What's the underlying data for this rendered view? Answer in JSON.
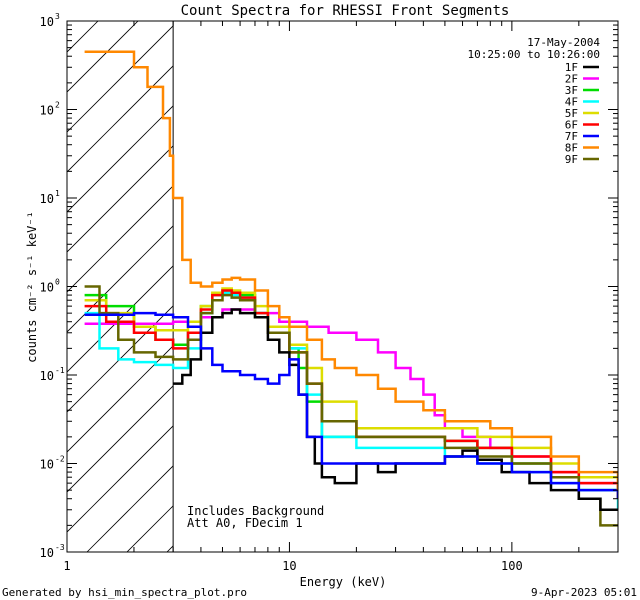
{
  "chart_data": {
    "type": "line",
    "title": "Count Spectra for RHESSI Front Segments",
    "xlabel": "Energy (keV)",
    "ylabel": "counts cm⁻² s⁻¹ keV⁻¹",
    "xscale": "log",
    "yscale": "log",
    "xlim": [
      1,
      300
    ],
    "ylim": [
      0.001,
      1000
    ],
    "x_tick_labels": [
      {
        "value": 1,
        "label": "1"
      },
      {
        "value": 10,
        "label": "10"
      },
      {
        "value": 100,
        "label": "100"
      }
    ],
    "y_tick_labels": [
      {
        "value": 0.001,
        "base": "10",
        "exp": "-3"
      },
      {
        "value": 0.01,
        "base": "10",
        "exp": "-2"
      },
      {
        "value": 0.1,
        "base": "10",
        "exp": "-1"
      },
      {
        "value": 1,
        "base": "10",
        "exp": "0"
      },
      {
        "value": 10,
        "base": "10",
        "exp": "1"
      },
      {
        "value": 100,
        "base": "10",
        "exp": "2"
      },
      {
        "value": 1000,
        "base": "10",
        "exp": "3"
      }
    ],
    "hatched_region": {
      "from": 1,
      "to": 3
    },
    "date": "17-May-2004",
    "time_range": "10:25:00 to 10:26:00",
    "annotation_lines": [
      "Includes Background",
      "Att A0, FDecim 1"
    ],
    "footer_left": "Generated by hsi_min_spectra_plot.pro",
    "footer_right": "9-Apr-2023 05:01",
    "series": [
      {
        "name": "1F",
        "color": "#000000",
        "points": [
          [
            3.0,
            0.08
          ],
          [
            3.3,
            0.1
          ],
          [
            3.6,
            0.15
          ],
          [
            4.0,
            0.3
          ],
          [
            4.5,
            0.45
          ],
          [
            5.0,
            0.5
          ],
          [
            5.5,
            0.55
          ],
          [
            6.0,
            0.5
          ],
          [
            7.0,
            0.45
          ],
          [
            8.0,
            0.25
          ],
          [
            9.0,
            0.18
          ],
          [
            10.0,
            0.13
          ],
          [
            11.0,
            0.06
          ],
          [
            12.0,
            0.02
          ],
          [
            13.0,
            0.01
          ],
          [
            14.0,
            0.007
          ],
          [
            16.0,
            0.006
          ],
          [
            20.0,
            0.01
          ],
          [
            25.0,
            0.008
          ],
          [
            30.0,
            0.01
          ],
          [
            40.0,
            0.01
          ],
          [
            50.0,
            0.012
          ],
          [
            60.0,
            0.014
          ],
          [
            70.0,
            0.011
          ],
          [
            90.0,
            0.008
          ],
          [
            120.0,
            0.006
          ],
          [
            150.0,
            0.005
          ],
          [
            200.0,
            0.004
          ],
          [
            250.0,
            0.003
          ],
          [
            300.0,
            0.003
          ]
        ]
      },
      {
        "name": "2F",
        "color": "#ff00ff",
        "points": [
          [
            1.2,
            0.38
          ],
          [
            2.0,
            0.38
          ],
          [
            2.5,
            0.38
          ],
          [
            3.0,
            0.4
          ],
          [
            4.0,
            0.45
          ],
          [
            5.0,
            0.55
          ],
          [
            7.0,
            0.5
          ],
          [
            9.0,
            0.4
          ],
          [
            12.0,
            0.35
          ],
          [
            15.0,
            0.3
          ],
          [
            20.0,
            0.25
          ],
          [
            25.0,
            0.18
          ],
          [
            30.0,
            0.12
          ],
          [
            35.0,
            0.09
          ],
          [
            40.0,
            0.06
          ],
          [
            45.0,
            0.035
          ],
          [
            50.0,
            0.025
          ],
          [
            60.0,
            0.02
          ],
          [
            80.0,
            0.015
          ],
          [
            100.0,
            0.012
          ],
          [
            150.0,
            0.008
          ],
          [
            200.0,
            0.006
          ],
          [
            300.0,
            0.004
          ]
        ]
      },
      {
        "name": "3F",
        "color": "#00dd00",
        "points": [
          [
            1.2,
            0.8
          ],
          [
            1.5,
            0.6
          ],
          [
            2.0,
            0.35
          ],
          [
            2.5,
            0.25
          ],
          [
            3.0,
            0.22
          ],
          [
            3.5,
            0.3
          ],
          [
            4.0,
            0.6
          ],
          [
            4.5,
            0.8
          ],
          [
            5.0,
            0.9
          ],
          [
            5.5,
            0.85
          ],
          [
            6.0,
            0.8
          ],
          [
            7.0,
            0.5
          ],
          [
            8.0,
            0.3
          ],
          [
            10.0,
            0.2
          ],
          [
            11.0,
            0.12
          ],
          [
            12.0,
            0.05
          ],
          [
            14.0,
            0.02
          ],
          [
            20.0,
            0.02
          ],
          [
            30.0,
            0.02
          ],
          [
            50.0,
            0.018
          ],
          [
            70.0,
            0.015
          ],
          [
            100.0,
            0.01
          ],
          [
            150.0,
            0.007
          ],
          [
            200.0,
            0.005
          ],
          [
            300.0,
            0.004
          ]
        ]
      },
      {
        "name": "4F",
        "color": "#00ffff",
        "points": [
          [
            1.2,
            0.5
          ],
          [
            1.4,
            0.2
          ],
          [
            1.7,
            0.15
          ],
          [
            2.0,
            0.14
          ],
          [
            2.5,
            0.13
          ],
          [
            3.0,
            0.12
          ],
          [
            3.5,
            0.2
          ],
          [
            4.0,
            0.5
          ],
          [
            4.5,
            0.8
          ],
          [
            5.0,
            0.85
          ],
          [
            5.5,
            0.8
          ],
          [
            6.0,
            0.75
          ],
          [
            7.0,
            0.5
          ],
          [
            8.0,
            0.3
          ],
          [
            10.0,
            0.2
          ],
          [
            12.0,
            0.06
          ],
          [
            14.0,
            0.02
          ],
          [
            20.0,
            0.015
          ],
          [
            30.0,
            0.015
          ],
          [
            50.0,
            0.012
          ],
          [
            70.0,
            0.01
          ],
          [
            100.0,
            0.008
          ],
          [
            150.0,
            0.006
          ],
          [
            200.0,
            0.005
          ],
          [
            300.0,
            0.003
          ]
        ]
      },
      {
        "name": "5F",
        "color": "#dddd00",
        "points": [
          [
            1.2,
            0.7
          ],
          [
            1.5,
            0.5
          ],
          [
            2.0,
            0.35
          ],
          [
            2.5,
            0.32
          ],
          [
            3.0,
            0.32
          ],
          [
            3.5,
            0.4
          ],
          [
            4.0,
            0.6
          ],
          [
            4.5,
            0.85
          ],
          [
            5.0,
            0.95
          ],
          [
            5.5,
            0.9
          ],
          [
            6.0,
            0.85
          ],
          [
            7.0,
            0.6
          ],
          [
            8.0,
            0.35
          ],
          [
            10.0,
            0.22
          ],
          [
            12.0,
            0.12
          ],
          [
            14.0,
            0.05
          ],
          [
            20.0,
            0.025
          ],
          [
            30.0,
            0.025
          ],
          [
            50.0,
            0.025
          ],
          [
            70.0,
            0.02
          ],
          [
            100.0,
            0.015
          ],
          [
            150.0,
            0.01
          ],
          [
            200.0,
            0.007
          ],
          [
            300.0,
            0.005
          ]
        ]
      },
      {
        "name": "6F",
        "color": "#ff0000",
        "points": [
          [
            1.2,
            0.6
          ],
          [
            1.5,
            0.4
          ],
          [
            2.0,
            0.3
          ],
          [
            2.5,
            0.25
          ],
          [
            3.0,
            0.2
          ],
          [
            3.5,
            0.3
          ],
          [
            4.0,
            0.55
          ],
          [
            4.5,
            0.8
          ],
          [
            5.0,
            0.9
          ],
          [
            5.5,
            0.85
          ],
          [
            6.0,
            0.75
          ],
          [
            7.0,
            0.5
          ],
          [
            8.0,
            0.3
          ],
          [
            10.0,
            0.18
          ],
          [
            12.0,
            0.08
          ],
          [
            14.0,
            0.03
          ],
          [
            20.0,
            0.02
          ],
          [
            30.0,
            0.02
          ],
          [
            50.0,
            0.018
          ],
          [
            70.0,
            0.015
          ],
          [
            100.0,
            0.012
          ],
          [
            150.0,
            0.008
          ],
          [
            200.0,
            0.006
          ],
          [
            300.0,
            0.004
          ]
        ]
      },
      {
        "name": "7F",
        "color": "#0000ff",
        "points": [
          [
            1.2,
            0.48
          ],
          [
            2.0,
            0.5
          ],
          [
            2.5,
            0.48
          ],
          [
            3.0,
            0.45
          ],
          [
            3.5,
            0.35
          ],
          [
            4.0,
            0.2
          ],
          [
            4.5,
            0.13
          ],
          [
            5.0,
            0.11
          ],
          [
            6.0,
            0.1
          ],
          [
            7.0,
            0.09
          ],
          [
            8.0,
            0.08
          ],
          [
            9.0,
            0.1
          ],
          [
            10.0,
            0.15
          ],
          [
            11.0,
            0.06
          ],
          [
            12.0,
            0.02
          ],
          [
            14.0,
            0.01
          ],
          [
            20.0,
            0.01
          ],
          [
            30.0,
            0.01
          ],
          [
            50.0,
            0.012
          ],
          [
            70.0,
            0.01
          ],
          [
            100.0,
            0.008
          ],
          [
            150.0,
            0.006
          ],
          [
            200.0,
            0.005
          ],
          [
            300.0,
            0.004
          ]
        ]
      },
      {
        "name": "8F",
        "color": "#ff8800",
        "points": [
          [
            1.2,
            450.0
          ],
          [
            1.6,
            450.0
          ],
          [
            2.0,
            300.0
          ],
          [
            2.3,
            180.0
          ],
          [
            2.7,
            80.0
          ],
          [
            2.9,
            30.0
          ],
          [
            3.0,
            10.0
          ],
          [
            3.3,
            2.0
          ],
          [
            3.6,
            1.1
          ],
          [
            4.0,
            1.0
          ],
          [
            4.5,
            1.1
          ],
          [
            5.0,
            1.2
          ],
          [
            5.5,
            1.25
          ],
          [
            6.0,
            1.2
          ],
          [
            7.0,
            0.9
          ],
          [
            8.0,
            0.6
          ],
          [
            9.0,
            0.45
          ],
          [
            10.0,
            0.35
          ],
          [
            12.0,
            0.25
          ],
          [
            14.0,
            0.15
          ],
          [
            16.0,
            0.12
          ],
          [
            20.0,
            0.1
          ],
          [
            25.0,
            0.07
          ],
          [
            30.0,
            0.05
          ],
          [
            40.0,
            0.04
          ],
          [
            50.0,
            0.03
          ],
          [
            60.0,
            0.03
          ],
          [
            80.0,
            0.025
          ],
          [
            100.0,
            0.02
          ],
          [
            150.0,
            0.012
          ],
          [
            200.0,
            0.008
          ],
          [
            300.0,
            0.005
          ]
        ]
      },
      {
        "name": "9F",
        "color": "#666600",
        "points": [
          [
            1.2,
            1.0
          ],
          [
            1.4,
            0.5
          ],
          [
            1.7,
            0.25
          ],
          [
            2.0,
            0.18
          ],
          [
            2.5,
            0.16
          ],
          [
            3.0,
            0.15
          ],
          [
            3.5,
            0.25
          ],
          [
            4.0,
            0.5
          ],
          [
            4.5,
            0.7
          ],
          [
            5.0,
            0.8
          ],
          [
            5.5,
            0.75
          ],
          [
            6.0,
            0.7
          ],
          [
            7.0,
            0.45
          ],
          [
            8.0,
            0.3
          ],
          [
            10.0,
            0.18
          ],
          [
            12.0,
            0.08
          ],
          [
            14.0,
            0.03
          ],
          [
            20.0,
            0.02
          ],
          [
            30.0,
            0.02
          ],
          [
            50.0,
            0.015
          ],
          [
            70.0,
            0.012
          ],
          [
            100.0,
            0.01
          ],
          [
            150.0,
            0.007
          ],
          [
            200.0,
            0.004
          ],
          [
            250.0,
            0.002
          ],
          [
            300.0,
            0.002
          ]
        ]
      }
    ]
  }
}
